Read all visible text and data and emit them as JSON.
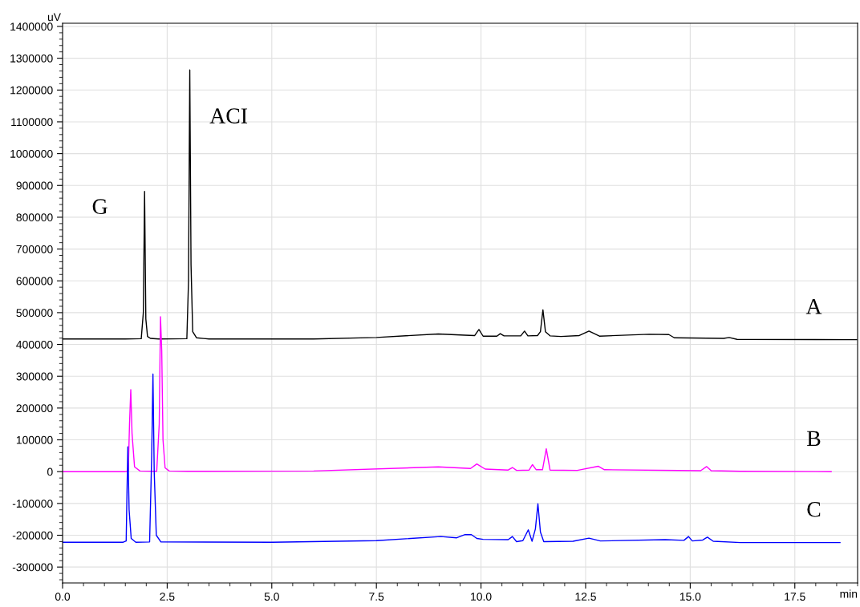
{
  "chart_data": {
    "type": "line",
    "xlabel": "min",
    "ylabel": "uV",
    "xlim": [
      0,
      19.0
    ],
    "xticks": [
      {
        "value": 0,
        "label": "0.0"
      },
      2.5,
      {
        "value": 5,
        "label": "5.0"
      },
      7.5,
      {
        "value": 10,
        "label": "10.0"
      },
      12.5,
      {
        "value": 15,
        "label": "15.0"
      },
      17.5
    ],
    "ylim": [
      -350000,
      1410000
    ],
    "yticks": [
      -300000,
      -200000,
      -100000,
      0,
      100000,
      200000,
      300000,
      400000,
      500000,
      600000,
      700000,
      800000,
      900000,
      1000000,
      1100000,
      1200000,
      1300000,
      1400000
    ],
    "grid": true,
    "marker": "none",
    "line_style": "solid",
    "series": [
      {
        "name": "A",
        "color": "#000000",
        "x": [
          0,
          1.5,
          1.88,
          1.93,
          1.96,
          1.99,
          2.03,
          2.1,
          2.3,
          2.97,
          3.01,
          3.04,
          3.07,
          3.11,
          3.2,
          3.5,
          6.0,
          7.5,
          8.98,
          9.61,
          9.85,
          9.95,
          10.05,
          10.38,
          10.46,
          10.55,
          10.95,
          11.04,
          11.12,
          11.35,
          11.42,
          11.48,
          11.54,
          11.65,
          11.91,
          12.35,
          12.58,
          12.83,
          14.02,
          14.49,
          14.62,
          15.8,
          15.93,
          16.12,
          18.98
        ],
        "values": [
          417000,
          417000,
          418000,
          500000,
          881000,
          480000,
          425000,
          419000,
          417000,
          418000,
          600000,
          1263000,
          650000,
          440000,
          421000,
          417000,
          417000,
          422000,
          433000,
          429000,
          428000,
          447000,
          426000,
          426000,
          434000,
          427000,
          427000,
          442000,
          427000,
          428000,
          440000,
          509000,
          440000,
          427000,
          425000,
          428000,
          442000,
          426000,
          432000,
          431000,
          421000,
          419000,
          422000,
          416000,
          415000
        ]
      },
      {
        "name": "B",
        "color": "#ff00ff",
        "x": [
          0,
          1.5,
          1.57,
          1.6,
          1.63,
          1.66,
          1.72,
          1.85,
          2.25,
          2.31,
          2.34,
          2.37,
          2.4,
          2.45,
          2.55,
          3.0,
          6.0,
          8.98,
          9.75,
          9.9,
          10.1,
          10.65,
          10.75,
          10.85,
          11.15,
          11.23,
          11.32,
          11.47,
          11.56,
          11.65,
          12.3,
          12.8,
          12.95,
          15.25,
          15.39,
          15.5,
          16.2,
          18.37
        ],
        "values": [
          0,
          0,
          2000,
          150000,
          258000,
          120000,
          15000,
          2000,
          1000,
          150000,
          487000,
          380000,
          100000,
          12000,
          2000,
          1000,
          2000,
          15000,
          10000,
          24000,
          8000,
          5000,
          13000,
          4000,
          5000,
          22000,
          6000,
          6000,
          72000,
          5000,
          4000,
          17000,
          6000,
          3000,
          16000,
          3000,
          1000,
          0
        ]
      },
      {
        "name": "C",
        "color": "#0000ff",
        "x": [
          0,
          1.45,
          1.52,
          1.54,
          1.56,
          1.59,
          1.64,
          1.75,
          2.08,
          2.13,
          2.16,
          2.19,
          2.24,
          2.35,
          5.0,
          7.5,
          9.04,
          9.42,
          9.62,
          9.77,
          9.9,
          10.05,
          10.65,
          10.75,
          10.85,
          11.0,
          11.13,
          11.22,
          11.3,
          11.36,
          11.42,
          11.5,
          12.2,
          12.58,
          12.85,
          14.4,
          14.85,
          14.96,
          15.05,
          15.3,
          15.41,
          15.55,
          16.2,
          18.58
        ],
        "values": [
          -222000,
          -222000,
          -218000,
          -60000,
          78000,
          -120000,
          -210000,
          -222000,
          -221000,
          50000,
          307000,
          0,
          -200000,
          -221000,
          -222000,
          -217000,
          -204000,
          -208000,
          -198000,
          -198000,
          -210000,
          -213000,
          -214000,
          -204000,
          -220000,
          -217000,
          -183000,
          -219000,
          -180000,
          -101000,
          -190000,
          -220000,
          -219000,
          -209000,
          -218000,
          -214000,
          -216000,
          -204000,
          -218000,
          -215000,
          -206000,
          -219000,
          -223000,
          -223000
        ]
      }
    ],
    "annotations": [
      "G",
      "ACI"
    ]
  }
}
